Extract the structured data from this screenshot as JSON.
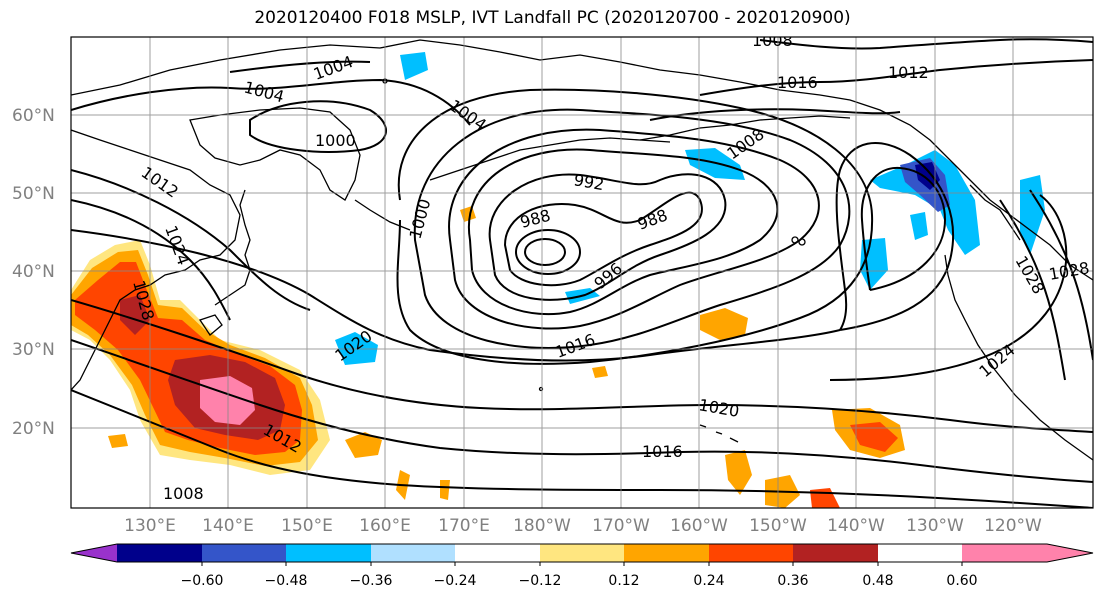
{
  "title": "2020120400 F018 MSLP, IVT Landfall PC (2020120700 - 2020120900)",
  "map": {
    "lat_labels": [
      "60°N",
      "50°N",
      "40°N",
      "30°N",
      "20°N"
    ],
    "lon_labels": [
      "130°E",
      "140°E",
      "150°E",
      "160°E",
      "170°E",
      "180°W",
      "170°W",
      "160°W",
      "150°W",
      "140°W",
      "130°W",
      "120°W"
    ],
    "isobar_labels": [
      {
        "text": "1000"
      },
      {
        "text": "1004"
      },
      {
        "text": "1004"
      },
      {
        "text": "1004"
      },
      {
        "text": "1008"
      },
      {
        "text": "1008"
      },
      {
        "text": "1016"
      },
      {
        "text": "1012"
      },
      {
        "text": "992"
      },
      {
        "text": "988"
      },
      {
        "text": "988"
      },
      {
        "text": "996"
      },
      {
        "text": "1000"
      },
      {
        "text": "1012"
      },
      {
        "text": "1024"
      },
      {
        "text": "1028"
      },
      {
        "text": "1020"
      },
      {
        "text": "1016"
      },
      {
        "text": "1020"
      },
      {
        "text": "1016"
      },
      {
        "text": "1012"
      },
      {
        "text": "1008"
      },
      {
        "text": "1024"
      },
      {
        "text": "1028"
      },
      {
        "text": "1028"
      }
    ]
  },
  "colorbar": {
    "ticks": [
      "−0.60",
      "−0.48",
      "−0.36",
      "−0.24",
      "−0.12",
      "0.12",
      "0.24",
      "0.36",
      "0.48",
      "0.60"
    ],
    "colors": [
      "#9932cc",
      "#00008b",
      "#3455c9",
      "#00bfff",
      "#b0e0ff",
      "#ffffff",
      "#ffe680",
      "#ffa500",
      "#ff4500",
      "#b22222",
      "#ff82ab"
    ]
  }
}
